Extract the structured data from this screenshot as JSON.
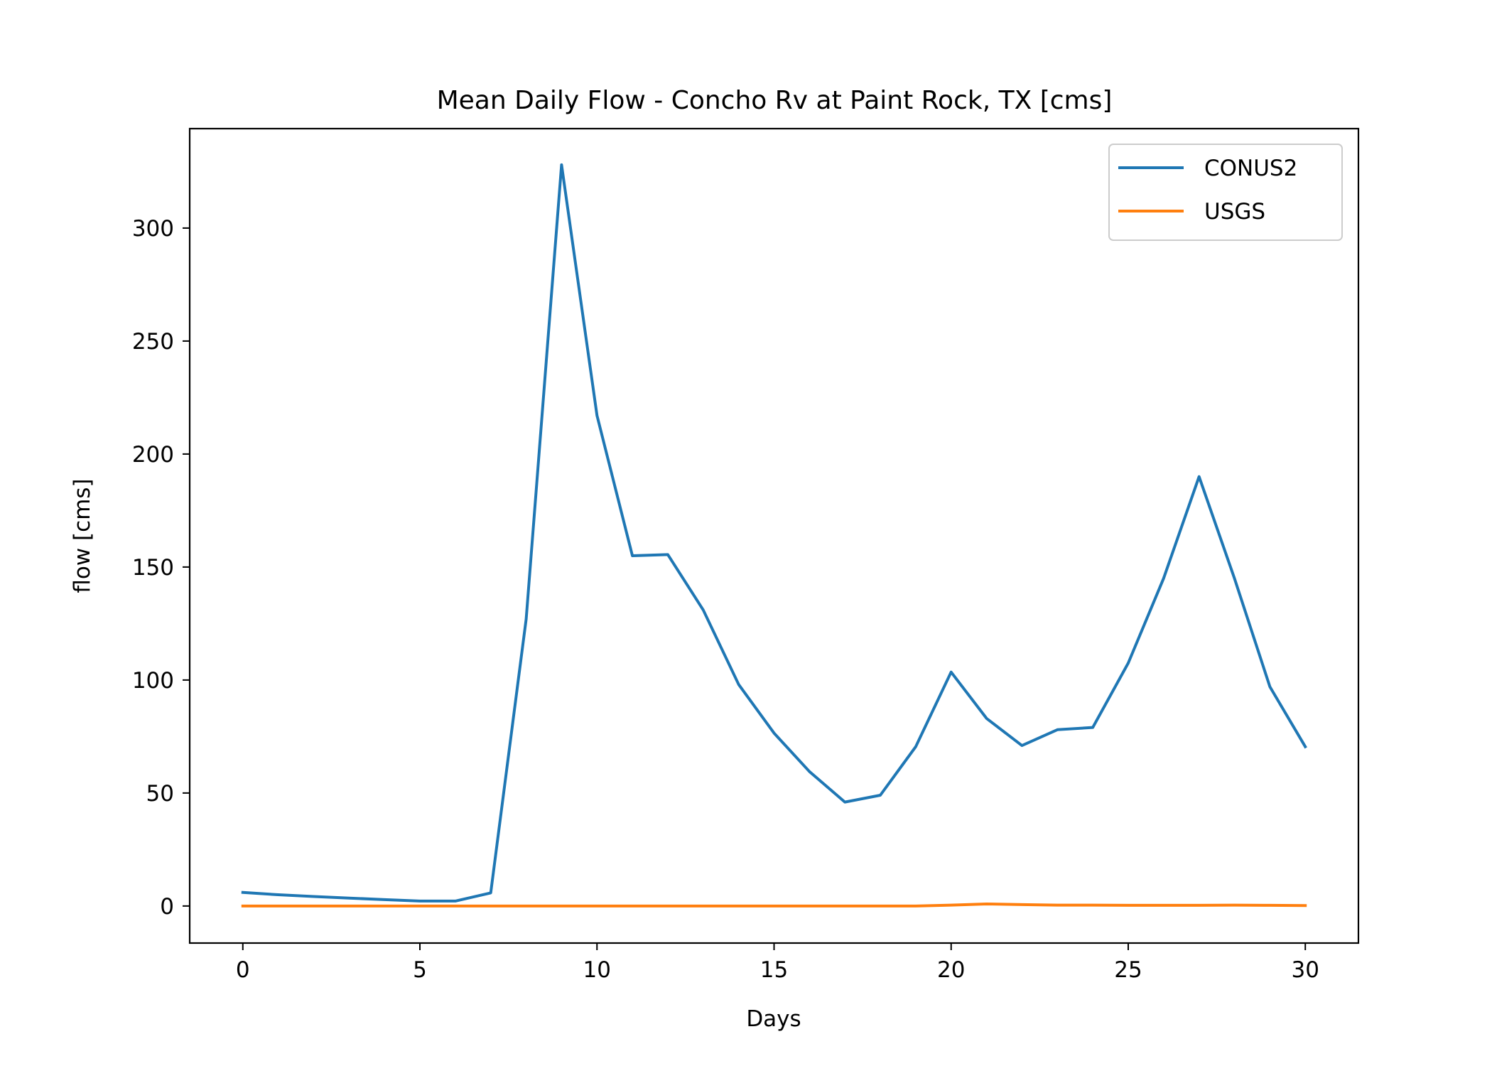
{
  "chart_data": {
    "type": "line",
    "title": "Mean Daily Flow - Concho Rv at Paint Rock, TX [cms]",
    "xlabel": "Days",
    "ylabel": "flow [cms]",
    "xlim": [
      -1.5,
      31.5
    ],
    "ylim": [
      -16.4,
      344
    ],
    "xticks": [
      0,
      5,
      10,
      15,
      20,
      25,
      30
    ],
    "xtick_labels": [
      "0",
      "5",
      "10",
      "15",
      "20",
      "25",
      "30"
    ],
    "yticks": [
      0,
      50,
      100,
      150,
      200,
      250,
      300
    ],
    "ytick_labels": [
      "0",
      "50",
      "100",
      "150",
      "200",
      "250",
      "300"
    ],
    "grid": false,
    "legend_position": "top-right",
    "x": [
      0,
      1,
      2,
      3,
      4,
      5,
      6,
      7,
      8,
      9,
      10,
      11,
      12,
      13,
      14,
      15,
      16,
      17,
      18,
      19,
      20,
      21,
      22,
      23,
      24,
      25,
      26,
      27,
      28,
      29,
      30
    ],
    "series": [
      {
        "name": "CONUS2",
        "color": "#1f77b4",
        "values": [
          6,
          5,
          4.2,
          3.5,
          2.8,
          2.2,
          2.2,
          5.8,
          127,
          328,
          217,
          155,
          155.5,
          131,
          98,
          76.5,
          59.5,
          46,
          49,
          70.5,
          103.5,
          83,
          71,
          78,
          79,
          107.5,
          145,
          190,
          145,
          97,
          70.5
        ]
      },
      {
        "name": "USGS",
        "color": "#ff7f0e",
        "values": [
          0,
          0,
          0,
          0,
          0,
          0,
          0,
          0,
          0,
          0,
          0,
          0,
          0,
          0,
          0,
          0,
          0,
          0,
          0,
          0,
          0.4,
          0.9,
          0.6,
          0.4,
          0.4,
          0.3,
          0.3,
          0.3,
          0.4,
          0.3,
          0.2
        ]
      }
    ]
  }
}
